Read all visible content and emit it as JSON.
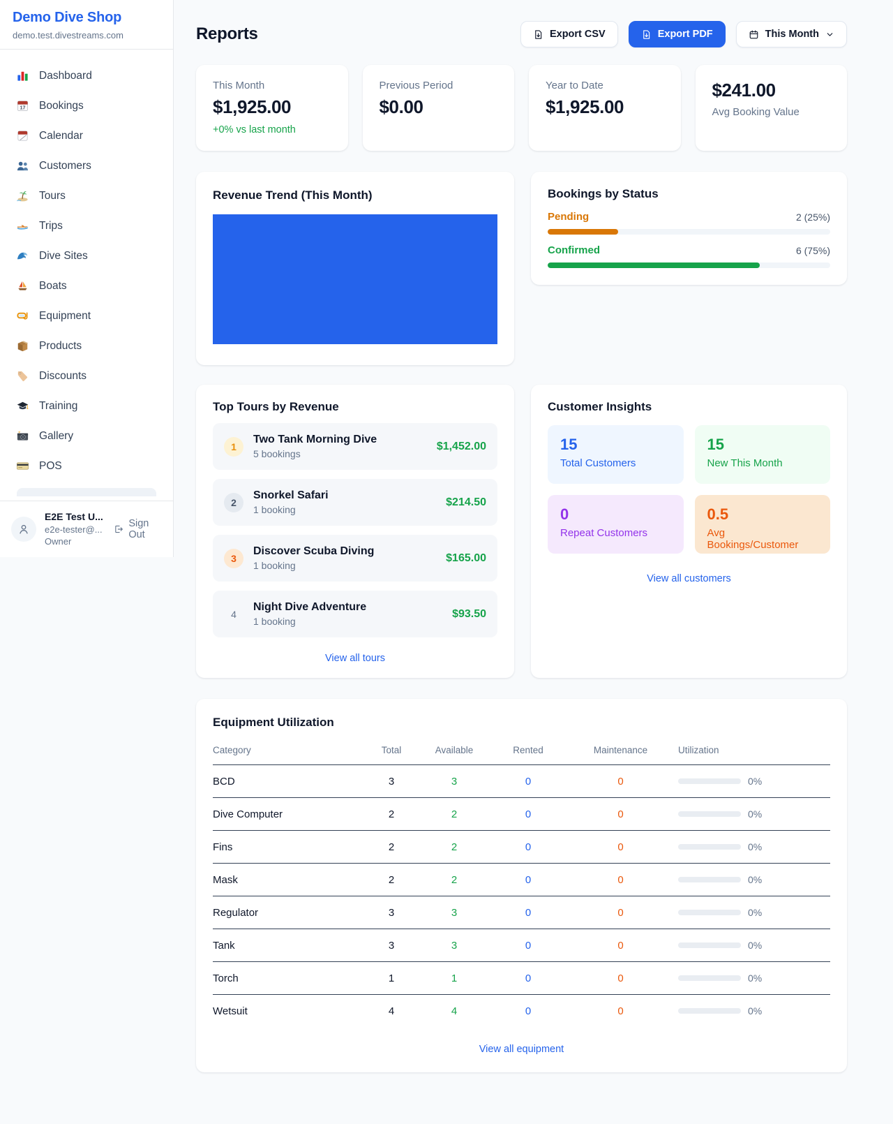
{
  "sidebar": {
    "shop_name": "Demo Dive Shop",
    "domain": "demo.test.divestreams.com",
    "items": [
      {
        "label": "Dashboard",
        "icon": "bar-chart-icon"
      },
      {
        "label": "Bookings",
        "icon": "calendar-date-icon"
      },
      {
        "label": "Calendar",
        "icon": "tear-calendar-icon"
      },
      {
        "label": "Customers",
        "icon": "people-icon"
      },
      {
        "label": "Tours",
        "icon": "island-icon"
      },
      {
        "label": "Trips",
        "icon": "speedboat-icon"
      },
      {
        "label": "Dive Sites",
        "icon": "wave-icon"
      },
      {
        "label": "Boats",
        "icon": "sailboat-icon"
      },
      {
        "label": "Equipment",
        "icon": "dive-mask-icon"
      },
      {
        "label": "Products",
        "icon": "package-icon"
      },
      {
        "label": "Discounts",
        "icon": "tag-icon"
      },
      {
        "label": "Training",
        "icon": "graduation-cap-icon"
      },
      {
        "label": "Gallery",
        "icon": "camera-icon"
      },
      {
        "label": "POS",
        "icon": "credit-card-icon"
      }
    ],
    "user": {
      "name": "E2E Test U...",
      "email": "e2e-tester@...",
      "role": "Owner",
      "sign_out_label": "Sign Out"
    }
  },
  "header": {
    "title": "Reports",
    "export_csv_label": "Export CSV",
    "export_pdf_label": "Export PDF",
    "period_selector_label": "This Month"
  },
  "accent_colors": {
    "primary_blue": "#2563eb",
    "green": "#16a34a",
    "amber": "#d97706",
    "orange": "#ea580c",
    "purple": "#9333ea"
  },
  "stats": [
    {
      "label": "This Month",
      "value": "$1,925.00",
      "delta": "+0% vs last month"
    },
    {
      "label": "Previous Period",
      "value": "$0.00"
    },
    {
      "label": "Year to Date",
      "value": "$1,925.00"
    },
    {
      "label": "Avg Booking Value",
      "value": "$241.00"
    }
  ],
  "chart_data": [
    {
      "type": "bar",
      "title": "Revenue Trend (This Month)",
      "categories": [
        "This Month"
      ],
      "values": [
        1925
      ],
      "xlabel": "",
      "ylabel": "",
      "bar_color": "#2563eb",
      "note": "single bar fills entire plot area; no axes, ticks or gridlines shown"
    },
    {
      "type": "bar",
      "title": "Bookings by Status",
      "orientation": "horizontal",
      "categories": [
        "Pending",
        "Confirmed"
      ],
      "values": [
        25,
        75
      ],
      "counts": [
        2,
        6
      ],
      "value_labels": [
        "2 (25%)",
        "6 (75%)"
      ],
      "colors": [
        "#d97706",
        "#16a34a"
      ],
      "xlim": [
        0,
        100
      ]
    }
  ],
  "revenue_trend": {
    "title": "Revenue Trend (This Month)"
  },
  "bookings_by_status": {
    "title": "Bookings by Status",
    "rows": [
      {
        "label": "Pending",
        "count_text": "2 (25%)",
        "percent": 25,
        "color": "#d97706"
      },
      {
        "label": "Confirmed",
        "count_text": "6 (75%)",
        "percent": 75,
        "color": "#16a34a"
      }
    ]
  },
  "top_tours": {
    "title": "Top Tours by Revenue",
    "rows": [
      {
        "rank": "1",
        "name": "Two Tank Morning Dive",
        "bookings": "5 bookings",
        "revenue": "$1,452.00"
      },
      {
        "rank": "2",
        "name": "Snorkel Safari",
        "bookings": "1 booking",
        "revenue": "$214.50"
      },
      {
        "rank": "3",
        "name": "Discover Scuba Diving",
        "bookings": "1 booking",
        "revenue": "$165.00"
      },
      {
        "rank": "4",
        "name": "Night Dive Adventure",
        "bookings": "1 booking",
        "revenue": "$93.50"
      }
    ],
    "view_all_label": "View all tours"
  },
  "customer_insights": {
    "title": "Customer Insights",
    "tiles": [
      {
        "value": "15",
        "label": "Total Customers",
        "color": "#2563eb"
      },
      {
        "value": "15",
        "label": "New This Month",
        "color": "#16a34a"
      },
      {
        "value": "0",
        "label": "Repeat Customers",
        "color": "#9333ea"
      },
      {
        "value": "0.5",
        "label": "Avg Bookings/Customer",
        "color": "#ea580c"
      }
    ],
    "view_all_label": "View all customers"
  },
  "equipment": {
    "title": "Equipment Utilization",
    "columns": [
      "Category",
      "Total",
      "Available",
      "Rented",
      "Maintenance",
      "Utilization"
    ],
    "rows": [
      {
        "category": "BCD",
        "total": "3",
        "available": "3",
        "rented": "0",
        "maintenance": "0",
        "utilization": "0%",
        "utilization_pct": 0
      },
      {
        "category": "Dive Computer",
        "total": "2",
        "available": "2",
        "rented": "0",
        "maintenance": "0",
        "utilization": "0%",
        "utilization_pct": 0
      },
      {
        "category": "Fins",
        "total": "2",
        "available": "2",
        "rented": "0",
        "maintenance": "0",
        "utilization": "0%",
        "utilization_pct": 0
      },
      {
        "category": "Mask",
        "total": "2",
        "available": "2",
        "rented": "0",
        "maintenance": "0",
        "utilization": "0%",
        "utilization_pct": 0
      },
      {
        "category": "Regulator",
        "total": "3",
        "available": "3",
        "rented": "0",
        "maintenance": "0",
        "utilization": "0%",
        "utilization_pct": 0
      },
      {
        "category": "Tank",
        "total": "3",
        "available": "3",
        "rented": "0",
        "maintenance": "0",
        "utilization": "0%",
        "utilization_pct": 0
      },
      {
        "category": "Torch",
        "total": "1",
        "available": "1",
        "rented": "0",
        "maintenance": "0",
        "utilization": "0%",
        "utilization_pct": 0
      },
      {
        "category": "Wetsuit",
        "total": "4",
        "available": "4",
        "rented": "0",
        "maintenance": "0",
        "utilization": "0%",
        "utilization_pct": 0
      }
    ],
    "view_all_label": "View all equipment"
  }
}
